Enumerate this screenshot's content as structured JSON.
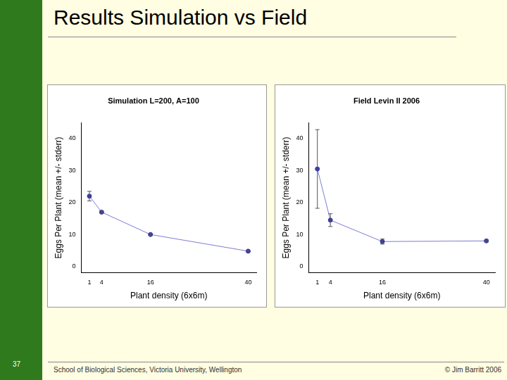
{
  "slide": {
    "title": "Results Simulation vs Field",
    "page": "37",
    "footer": "School of Biological Sciences, Victoria University, Wellington",
    "copyright": "© Jim Barritt 2006"
  },
  "chart_data": [
    {
      "type": "line",
      "title": "Simulation L=200, A=100",
      "x_label": "Plant density (6x6m)",
      "y_label": "Eggs Per Plant (mean +/- stderr)",
      "x": [
        1,
        4,
        16,
        40
      ],
      "series": [
        {
          "values": [
            22,
            17,
            10,
            4.8
          ],
          "errors": [
            1.5,
            0.4,
            0.3,
            0.2
          ],
          "color": "#7b7bd6",
          "marker": "circle",
          "line_style": "solid"
        }
      ],
      "xlim": [
        -1,
        42
      ],
      "xticks": [
        1,
        4,
        16,
        40
      ],
      "ylim": [
        -2,
        45
      ],
      "yticks": [
        0,
        10,
        20,
        30,
        40
      ],
      "grid": false
    },
    {
      "type": "line",
      "title": "Field Levin II 2006",
      "x_label": "Plant density (6x6m)",
      "y_label": "Eggs Per Plant (mean +/- stderr)",
      "x": [
        1,
        4,
        16,
        40
      ],
      "series": [
        {
          "values": [
            30.5,
            14.5,
            7.8,
            8
          ],
          "errors": [
            12.3,
            2,
            0.8,
            0.3
          ],
          "color": "#7b7bd6",
          "marker": "circle",
          "line_style": "solid"
        }
      ],
      "xlim": [
        -1,
        42
      ],
      "xticks": [
        1,
        4,
        16,
        40
      ],
      "ylim": [
        -2,
        45
      ],
      "yticks": [
        0,
        10,
        20,
        30,
        40
      ],
      "grid": false
    }
  ]
}
